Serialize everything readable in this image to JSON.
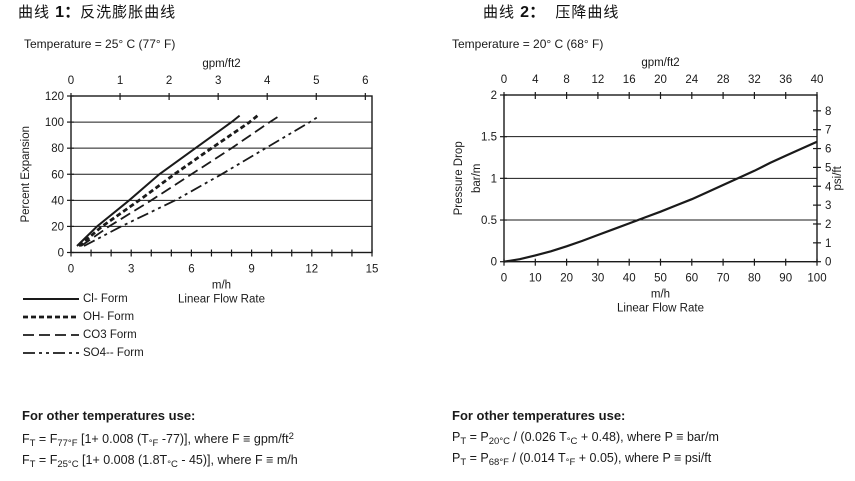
{
  "page": {
    "left": {
      "title_prefix": "曲线 ",
      "title_number": "1：",
      "title_text": "反洗膨胀曲线",
      "formulas": {
        "heading": "For other temperatures use:",
        "lines": [
          [
            [
              "F"
            ],
            [
              "T",
              "sub"
            ],
            [
              " = F"
            ],
            [
              "77°F",
              "sub"
            ],
            [
              " [1+ 0.008 (T"
            ],
            [
              "°F",
              "sub"
            ],
            [
              " -77)], where F ≡ gpm/ft"
            ],
            [
              "2",
              "sup"
            ]
          ],
          [
            [
              "F"
            ],
            [
              "T",
              "sub"
            ],
            [
              " = F"
            ],
            [
              "25°C",
              "sub"
            ],
            [
              " [1+ 0.008 (1.8T"
            ],
            [
              "°C",
              "sub"
            ],
            [
              " - 45)], where F ≡ m/h"
            ]
          ]
        ]
      }
    },
    "right": {
      "title_prefix": "曲线 ",
      "title_number": "2：",
      "title_text": "  压降曲线",
      "formulas": {
        "heading": "For other temperatures use:",
        "lines": [
          [
            [
              "P"
            ],
            [
              "T",
              "sub"
            ],
            [
              " = P"
            ],
            [
              "20°C",
              "sub"
            ],
            [
              " / (0.026 T"
            ],
            [
              "°C",
              "sub"
            ],
            [
              " + 0.48), where P ≡ bar/m"
            ]
          ],
          [
            [
              "P"
            ],
            [
              "T",
              "sub"
            ],
            [
              " = P"
            ],
            [
              "68°F",
              "sub"
            ],
            [
              " / (0.014 T"
            ],
            [
              "°F",
              "sub"
            ],
            [
              " + 0.05), where P ≡ psi/ft"
            ]
          ]
        ]
      }
    }
  },
  "chart_data": [
    {
      "type": "line",
      "title": "曲线 1：反洗膨胀曲线",
      "temperature": "Temperature = 25° C (77° F)",
      "xlabel": [
        "m/h",
        "Linear Flow Rate"
      ],
      "ylabel": [
        "Percent Expansion"
      ],
      "top_axis": {
        "label": "gpm/ft2",
        "range": [
          0,
          6.136
        ],
        "ticks": [
          0,
          1,
          2,
          3,
          4,
          5,
          6
        ]
      },
      "x_axis": {
        "range": [
          0,
          15
        ],
        "ticks": [
          0,
          3,
          6,
          9,
          12,
          15
        ],
        "minor_step": 1
      },
      "y_axis": {
        "range": [
          0,
          120
        ],
        "ticks": [
          0,
          20,
          40,
          60,
          80,
          100,
          120
        ],
        "grid": [
          20,
          40,
          60,
          80,
          100
        ]
      },
      "legend_position": "below-left",
      "series": [
        {
          "name": "Cl- Form",
          "dash": "",
          "width": 2,
          "points": [
            [
              0.3,
              5
            ],
            [
              1.3,
              20
            ],
            [
              2.9,
              40
            ],
            [
              4.4,
              60
            ],
            [
              6.2,
              80
            ],
            [
              8.0,
              100
            ],
            [
              8.4,
              105
            ]
          ]
        },
        {
          "name": "OH- Form",
          "dash": "5 3",
          "width": 2.8,
          "points": [
            [
              0.4,
              5
            ],
            [
              1.55,
              20
            ],
            [
              3.4,
              40
            ],
            [
              5.15,
              60
            ],
            [
              7.0,
              80
            ],
            [
              8.9,
              100
            ],
            [
              9.3,
              105
            ]
          ]
        },
        {
          "name": "CO3 Form",
          "dash": "11 5",
          "width": 1.8,
          "points": [
            [
              0.5,
              5
            ],
            [
              1.9,
              20
            ],
            [
              4.0,
              40
            ],
            [
              6.0,
              60
            ],
            [
              8.0,
              80
            ],
            [
              9.9,
              100
            ],
            [
              10.4,
              105
            ]
          ]
        },
        {
          "name": "SO4-- Form",
          "dash": "12 4 3 4 3 4",
          "width": 1.8,
          "points": [
            [
              0.65,
              5
            ],
            [
              2.5,
              20
            ],
            [
              5.2,
              40
            ],
            [
              7.5,
              60
            ],
            [
              9.7,
              80
            ],
            [
              11.9,
              100
            ],
            [
              12.4,
              105
            ]
          ]
        }
      ]
    },
    {
      "type": "line",
      "title": "曲线 2：压降曲线",
      "temperature": "Temperature = 20° C (68° F)",
      "xlabel": [
        "m/h",
        "Linear Flow Rate"
      ],
      "ylabel": [
        "Pressure Drop",
        "bar/m"
      ],
      "right_axis": {
        "label": "psi/ft",
        "range": [
          0,
          8.84
        ],
        "ticks": [
          0,
          1,
          2,
          3,
          4,
          5,
          6,
          7,
          8
        ]
      },
      "top_axis": {
        "label": "gpm/ft2",
        "range": [
          0,
          40
        ],
        "ticks": [
          0,
          4,
          8,
          12,
          16,
          20,
          24,
          28,
          32,
          36,
          40
        ]
      },
      "x_axis": {
        "range": [
          0,
          100
        ],
        "ticks": [
          0,
          10,
          20,
          30,
          40,
          50,
          60,
          70,
          80,
          90,
          100
        ]
      },
      "y_axis": {
        "range": [
          0,
          2
        ],
        "ticks": [
          0,
          0.5,
          1,
          1.5,
          2
        ],
        "grid": [
          0.5,
          1,
          1.5
        ]
      },
      "series": [
        {
          "name": "Pressure Drop",
          "dash": "",
          "width": 2.2,
          "points": [
            [
              0,
              0
            ],
            [
              5,
              0.03
            ],
            [
              10,
              0.075
            ],
            [
              15,
              0.125
            ],
            [
              20,
              0.185
            ],
            [
              25,
              0.25
            ],
            [
              30,
              0.32
            ],
            [
              35,
              0.39
            ],
            [
              40,
              0.46
            ],
            [
              45,
              0.53
            ],
            [
              50,
              0.6
            ],
            [
              55,
              0.675
            ],
            [
              60,
              0.75
            ],
            [
              65,
              0.835
            ],
            [
              70,
              0.92
            ],
            [
              75,
              1.005
            ],
            [
              80,
              1.09
            ],
            [
              85,
              1.185
            ],
            [
              90,
              1.27
            ],
            [
              95,
              1.355
            ],
            [
              100,
              1.44
            ]
          ]
        }
      ]
    }
  ]
}
